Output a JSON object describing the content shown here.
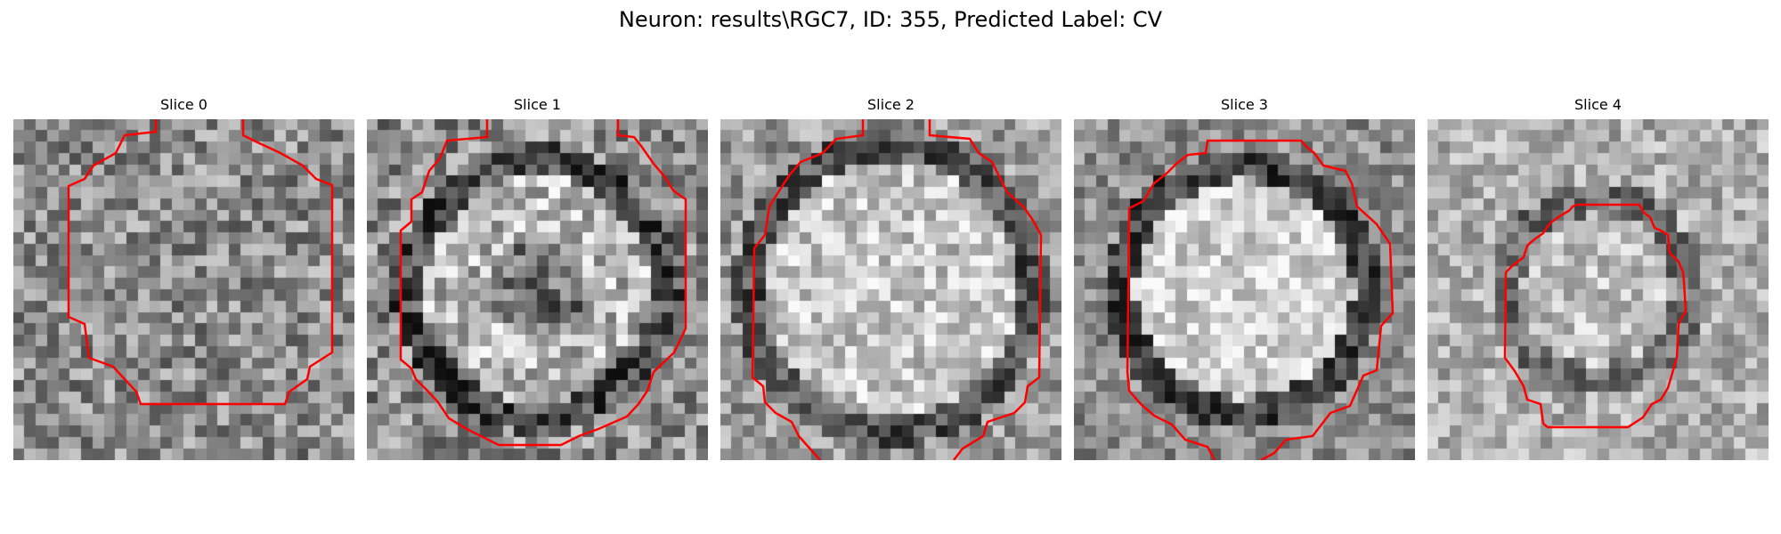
{
  "figure": {
    "title": "Neuron: results\\RGC7, ID: 355, Predicted Label: CV",
    "contour_color": "#ff0000",
    "colormap": "gray"
  },
  "slices": [
    {
      "label": "Slice 0"
    },
    {
      "label": "Slice 1"
    },
    {
      "label": "Slice 2"
    },
    {
      "label": "Slice 3"
    },
    {
      "label": "Slice 4"
    }
  ]
}
